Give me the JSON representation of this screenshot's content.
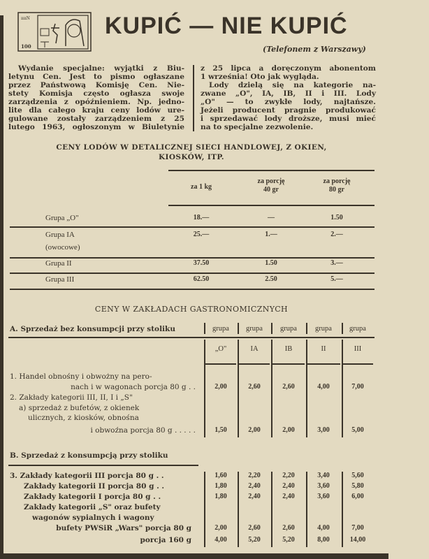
{
  "header": {
    "title": "KUPIĆ — NIE KUPIĆ",
    "subtitle": "(Telefonem z Warszawy)",
    "logo_text": "100"
  },
  "article": {
    "left_lines": [
      "Wydanie specjalne: wyjątki z Biu-",
      "letynu Cen. Jest to pismo ogłaszane",
      "przez Państwową Komisję Cen. Nie-",
      "stety Komisja często ogłasza swoje",
      "zarządzenia z opóźnieniem. Np. jedno-",
      "lite dla całego kraju ceny lodów ure-",
      "gulowane zostały zarządzeniem z 25",
      "lutego 1963, ogłoszonym w Biuletynie"
    ],
    "right_lines": [
      "z 25 lipca a doręczonym abonentom",
      "1 września! Oto jak wygląda.",
      "Lody dzielą się na kategorie na-",
      "zwane „O\", IA, IB, II i III. Lody",
      "„O\" — to zwykłe lody, najtańsze.",
      "Jeżeli producent pragnie produkować",
      "i sprzedawać lody droższe, musi mieć",
      "na to specjalne zezwolenie."
    ]
  },
  "table1": {
    "title_line1": "CENY LODÓW W DETALICZNEJ SIECI HANDLOWEJ, Z OKIEN,",
    "title_line2": "KIOSKÓW, ITP.",
    "headers": [
      "za 1 kg",
      "za porcję\n40 gr",
      "za porcję\n80 gr"
    ],
    "rows": [
      {
        "label": "Grupa „O\"",
        "sub": "",
        "values": [
          "18.—",
          "—",
          "1.50"
        ]
      },
      {
        "label": "Grupa IA",
        "sub": "(owocowe)",
        "values": [
          "25.—",
          "1.—",
          "2.—"
        ]
      },
      {
        "label": "Grupa II",
        "sub": "",
        "values": [
          "37.50",
          "1.50",
          "3.—"
        ]
      },
      {
        "label": "Grupa III",
        "sub": "",
        "values": [
          "62.50",
          "2.50",
          "5.—"
        ]
      }
    ]
  },
  "table2": {
    "title": "CENY W ZAKŁADACH GASTRONOMICZNYCH",
    "section_a": "A. Sprzedaż bez konsumpcji przy stoliku",
    "section_b": "B. Sprzedaż z konsumpcją przy stoliku",
    "group_word": "grupa",
    "groups": [
      "„O\"",
      "IA",
      "IB",
      "II",
      "III"
    ],
    "rows_a": [
      {
        "label": "1. Handel obnośny i obwożny na pero-",
        "values": []
      },
      {
        "label": "nach i w wagonach porcja 80 g . .",
        "values": [
          "2,00",
          "2,60",
          "2,60",
          "4,00",
          "7,00"
        ]
      },
      {
        "label": "2. Zakłady kategorii III, II, I i „S\"",
        "values": []
      },
      {
        "label": "a) sprzedaż z bufetów, z okienek",
        "values": []
      },
      {
        "label": "ulicznych, z kiosków, obnośna",
        "values": []
      },
      {
        "label": "i obwoźna porcja 80 g . . . . .",
        "values": [
          "1,50",
          "2,00",
          "2,00",
          "3,00",
          "5,00"
        ]
      }
    ],
    "rows_b": [
      {
        "label": "3. Zakłady kategorii III porcja 80 g . .",
        "values": [
          "1,60",
          "2,20",
          "2,20",
          "3,40",
          "5,60"
        ]
      },
      {
        "label": "Zakłady kategorii II porcja 80 g . .",
        "values": [
          "1,80",
          "2,40",
          "2,40",
          "3,60",
          "5,80"
        ]
      },
      {
        "label": "Zakłady kategorii I porcja 80 g . .",
        "values": [
          "1,80",
          "2,40",
          "2,40",
          "3,60",
          "6,00"
        ]
      },
      {
        "label": "Zakłady kategorii „S\" oraz bufety",
        "values": []
      },
      {
        "label": "wagonów sypialnych i wagony",
        "values": []
      },
      {
        "label": "bufety PWSiR „Wars\" porcja 80 g",
        "values": [
          "2,00",
          "2,60",
          "2,60",
          "4,00",
          "7,00"
        ]
      },
      {
        "label": "porcja 160 g",
        "values": [
          "4,00",
          "5,20",
          "5,20",
          "8,00",
          "14,00"
        ]
      }
    ]
  },
  "colors": {
    "paper": "#e3dac1",
    "ink": "#3a3329"
  }
}
